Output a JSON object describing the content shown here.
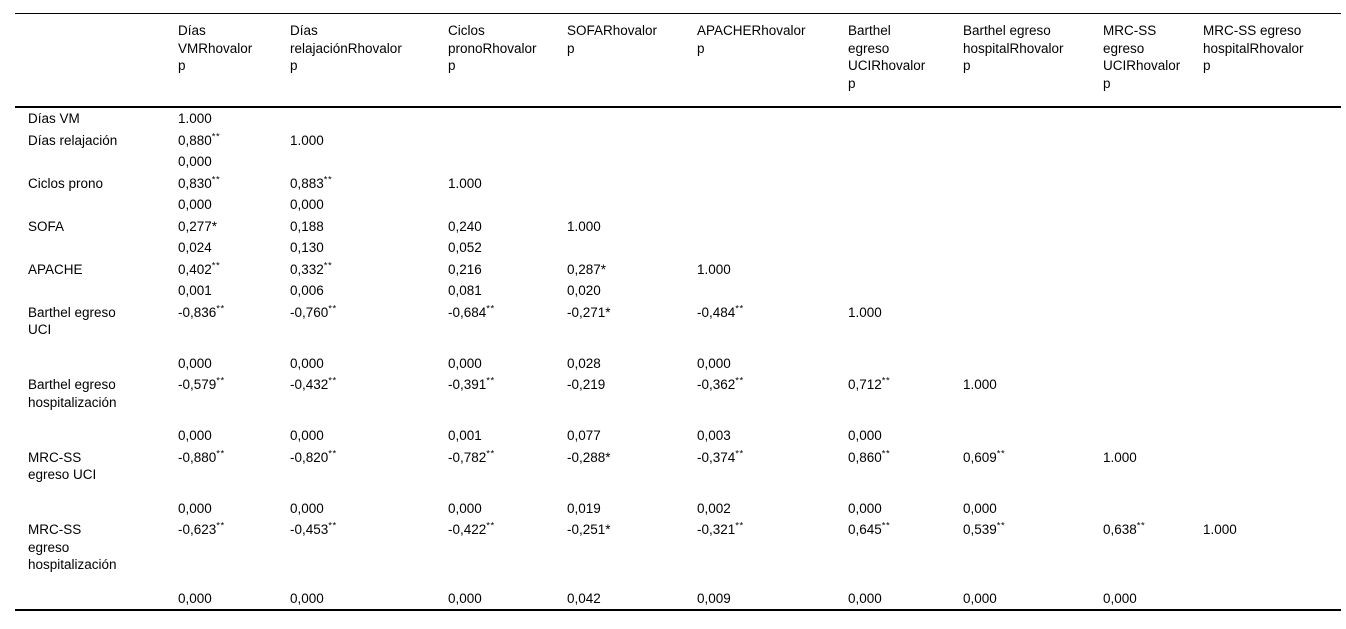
{
  "table": {
    "description": "Correlation matrix (Rho / valor p)",
    "columns": [
      {
        "label": ""
      },
      {
        "label": "Días\nVMRhovalor\np"
      },
      {
        "label": "Días\nrelajaciónRhovalor\np"
      },
      {
        "label": "Ciclos\npronoRhovalor\np"
      },
      {
        "label": "SOFARhovalor\np"
      },
      {
        "label": "APACHERhovalor\np"
      },
      {
        "label": "Barthel\negreso\nUCIRhovalor\np"
      },
      {
        "label": "Barthel egreso\nhospitalRhovalor\np"
      },
      {
        "label": "MRC-SS\negreso\nUCIRhovalor\np"
      },
      {
        "label": "MRC-SS egreso\nhospitalRhovalor\np"
      }
    ],
    "rows": [
      {
        "label": "Días VM",
        "r": [
          {
            "v": "1.000",
            "s": ""
          }
        ],
        "p": null
      },
      {
        "label": "Días relajación",
        "r": [
          {
            "v": "0,880",
            "s": "**"
          },
          {
            "v": "1.000",
            "s": ""
          }
        ],
        "p": [
          "0,000"
        ]
      },
      {
        "label": "Ciclos prono",
        "r": [
          {
            "v": "0,830",
            "s": "**"
          },
          {
            "v": "0,883",
            "s": "**"
          },
          {
            "v": "1.000",
            "s": ""
          }
        ],
        "p": [
          "0,000",
          "0,000"
        ]
      },
      {
        "label": "SOFA",
        "r": [
          {
            "v": "0,277*",
            "s": ""
          },
          {
            "v": "0,188",
            "s": ""
          },
          {
            "v": "0,240",
            "s": ""
          },
          {
            "v": "1.000",
            "s": ""
          }
        ],
        "p": [
          "0,024",
          "0,130",
          "0,052"
        ]
      },
      {
        "label": "APACHE",
        "r": [
          {
            "v": "0,402",
            "s": "**"
          },
          {
            "v": "0,332",
            "s": "**"
          },
          {
            "v": "0,216",
            "s": ""
          },
          {
            "v": "0,287*",
            "s": ""
          },
          {
            "v": "1.000",
            "s": ""
          }
        ],
        "p": [
          "0,001",
          "0,006",
          "0,081",
          "0,020"
        ]
      },
      {
        "label": "Barthel egreso\nUCI",
        "r": [
          {
            "v": "-0,836",
            "s": "**"
          },
          {
            "v": "-0,760",
            "s": "**"
          },
          {
            "v": "-0,684",
            "s": "**"
          },
          {
            "v": "-0,271*",
            "s": ""
          },
          {
            "v": "-0,484",
            "s": "**"
          },
          {
            "v": "1.000",
            "s": ""
          }
        ],
        "p": [
          "0,000",
          "0,000",
          "0,000",
          "0,028",
          "0,000"
        ]
      },
      {
        "label": "Barthel egreso\nhospitalización",
        "r": [
          {
            "v": "-0,579",
            "s": "**"
          },
          {
            "v": "-0,432",
            "s": "**"
          },
          {
            "v": "-0,391",
            "s": "**"
          },
          {
            "v": "-0,219",
            "s": ""
          },
          {
            "v": "-0,362",
            "s": "**"
          },
          {
            "v": "0,712",
            "s": "**"
          },
          {
            "v": "1.000",
            "s": ""
          }
        ],
        "p": [
          "0,000",
          "0,000",
          "0,001",
          "0,077",
          "0,003",
          "0,000"
        ]
      },
      {
        "label": "MRC-SS\negreso UCI",
        "r": [
          {
            "v": "-0,880",
            "s": "**"
          },
          {
            "v": "-0,820",
            "s": "**"
          },
          {
            "v": "-0,782",
            "s": "**"
          },
          {
            "v": "-0,288*",
            "s": ""
          },
          {
            "v": "-0,374",
            "s": "**"
          },
          {
            "v": "0,860",
            "s": "**"
          },
          {
            "v": "0,609",
            "s": "**"
          },
          {
            "v": "1.000",
            "s": ""
          }
        ],
        "p": [
          "0,000",
          "0,000",
          "0,000",
          "0,019",
          "0,002",
          "0,000",
          "0,000"
        ]
      },
      {
        "label": "MRC-SS\negreso\nhospitalización",
        "r": [
          {
            "v": "-0,623",
            "s": "**"
          },
          {
            "v": "-0,453",
            "s": "**"
          },
          {
            "v": "-0,422",
            "s": "**"
          },
          {
            "v": "-0,251*",
            "s": ""
          },
          {
            "v": "-0,321",
            "s": "**"
          },
          {
            "v": "0,645",
            "s": "**"
          },
          {
            "v": "0,539",
            "s": "**"
          },
          {
            "v": "0,638",
            "s": "**"
          },
          {
            "v": "1.000",
            "s": ""
          }
        ],
        "p": [
          "0,000",
          "0,000",
          "0,000",
          "0,042",
          "0,009",
          "0,000",
          "0,000",
          "0,000"
        ]
      }
    ]
  }
}
